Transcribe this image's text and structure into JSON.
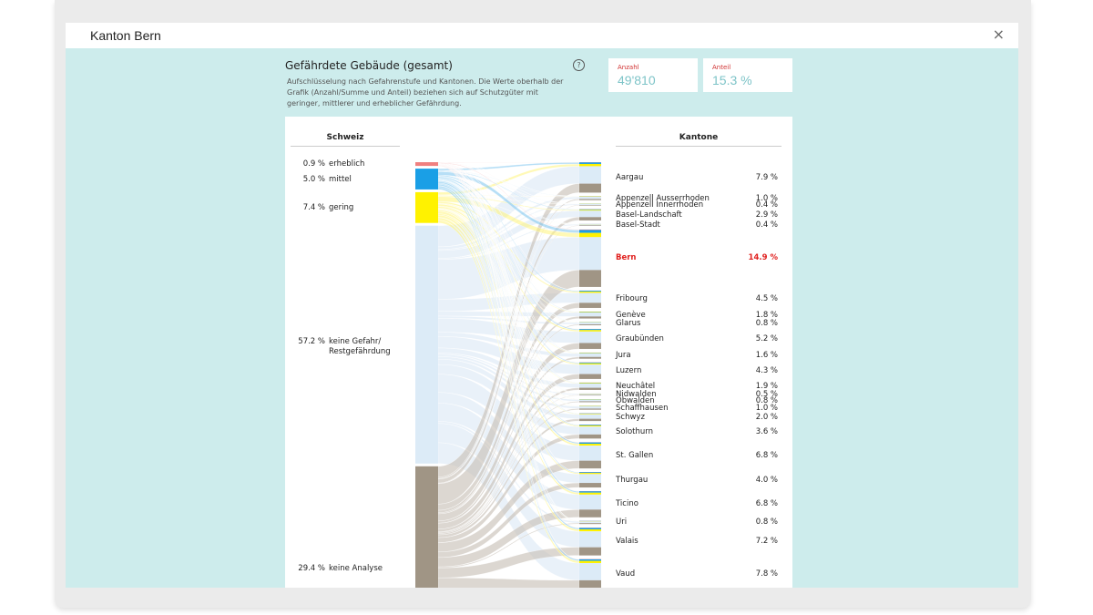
{
  "modal": {
    "title": "Kanton Bern",
    "close_icon": "×"
  },
  "panel": {
    "title": "Gefährdete Gebäude (gesamt)",
    "description": "Aufschlüsselung nach Gefahrenstufe und Kantonen. Die Werte oberhalb der Grafik (Anzahl/Summe und Anteil) beziehen sich auf Schutzgüter mit geringer, mittlerer und erheblicher Gefährdung.",
    "help_icon": "?"
  },
  "stats": {
    "count_label": "Anzahl",
    "count_value": "49'810",
    "share_label": "Anteil",
    "share_value": "15.3 %"
  },
  "colors": {
    "erheblich": "#f08080",
    "mittel": "#1a9fe6",
    "gering": "#fff200",
    "keine_gefahr": "#dcebf7",
    "keine_analyse": "#a09585",
    "highlight": "#e0201e"
  },
  "chart_data": {
    "type": "sankey",
    "left_title": "Schweiz",
    "right_title": "Kantone",
    "sources": [
      {
        "key": "erheblich",
        "pct": "0.9 %",
        "label": "erheblich",
        "value": 0.9
      },
      {
        "key": "mittel",
        "pct": "5.0 %",
        "label": "mittel",
        "value": 5.0
      },
      {
        "key": "gering",
        "pct": "7.4 %",
        "label": "gering",
        "value": 7.4
      },
      {
        "key": "keine_gefahr",
        "pct": "57.2 %",
        "label": "keine Gefahr/ Restgefährdung",
        "value": 57.2
      },
      {
        "key": "keine_analyse",
        "pct": "29.4 %",
        "label": "keine Analyse",
        "value": 29.4
      }
    ],
    "cantons": [
      {
        "name": "Aargau",
        "pct": "7.9 %",
        "value": 7.9
      },
      {
        "name": "Appenzell Ausserrhoden",
        "pct": "1.0 %",
        "value": 1.0
      },
      {
        "name": "Appenzell Innerrhoden",
        "pct": "0.4 %",
        "value": 0.4
      },
      {
        "name": "Basel-Landschaft",
        "pct": "2.9 %",
        "value": 2.9
      },
      {
        "name": "Basel-Stadt",
        "pct": "0.4 %",
        "value": 0.4
      },
      {
        "name": "Bern",
        "pct": "14.9 %",
        "value": 14.9,
        "highlight": true
      },
      {
        "name": "Fribourg",
        "pct": "4.5 %",
        "value": 4.5
      },
      {
        "name": "Genève",
        "pct": "1.8 %",
        "value": 1.8
      },
      {
        "name": "Glarus",
        "pct": "0.8 %",
        "value": 0.8
      },
      {
        "name": "Graubünden",
        "pct": "5.2 %",
        "value": 5.2
      },
      {
        "name": "Jura",
        "pct": "1.6 %",
        "value": 1.6
      },
      {
        "name": "Luzern",
        "pct": "4.3 %",
        "value": 4.3
      },
      {
        "name": "Neuchâtel",
        "pct": "1.9 %",
        "value": 1.9
      },
      {
        "name": "Nidwalden",
        "pct": "0.5 %",
        "value": 0.5
      },
      {
        "name": "Obwalden",
        "pct": "0.8 %",
        "value": 0.8
      },
      {
        "name": "Schaffhausen",
        "pct": "1.0 %",
        "value": 1.0
      },
      {
        "name": "Schwyz",
        "pct": "2.0 %",
        "value": 2.0
      },
      {
        "name": "Solothurn",
        "pct": "3.6 %",
        "value": 3.6
      },
      {
        "name": "St. Gallen",
        "pct": "6.8 %",
        "value": 6.8
      },
      {
        "name": "Thurgau",
        "pct": "4.0 %",
        "value": 4.0
      },
      {
        "name": "Ticino",
        "pct": "6.8 %",
        "value": 6.8
      },
      {
        "name": "Uri",
        "pct": "0.8 %",
        "value": 0.8
      },
      {
        "name": "Valais",
        "pct": "7.2 %",
        "value": 7.2
      },
      {
        "name": "Vaud",
        "pct": "7.8 %",
        "value": 7.8
      }
    ]
  }
}
